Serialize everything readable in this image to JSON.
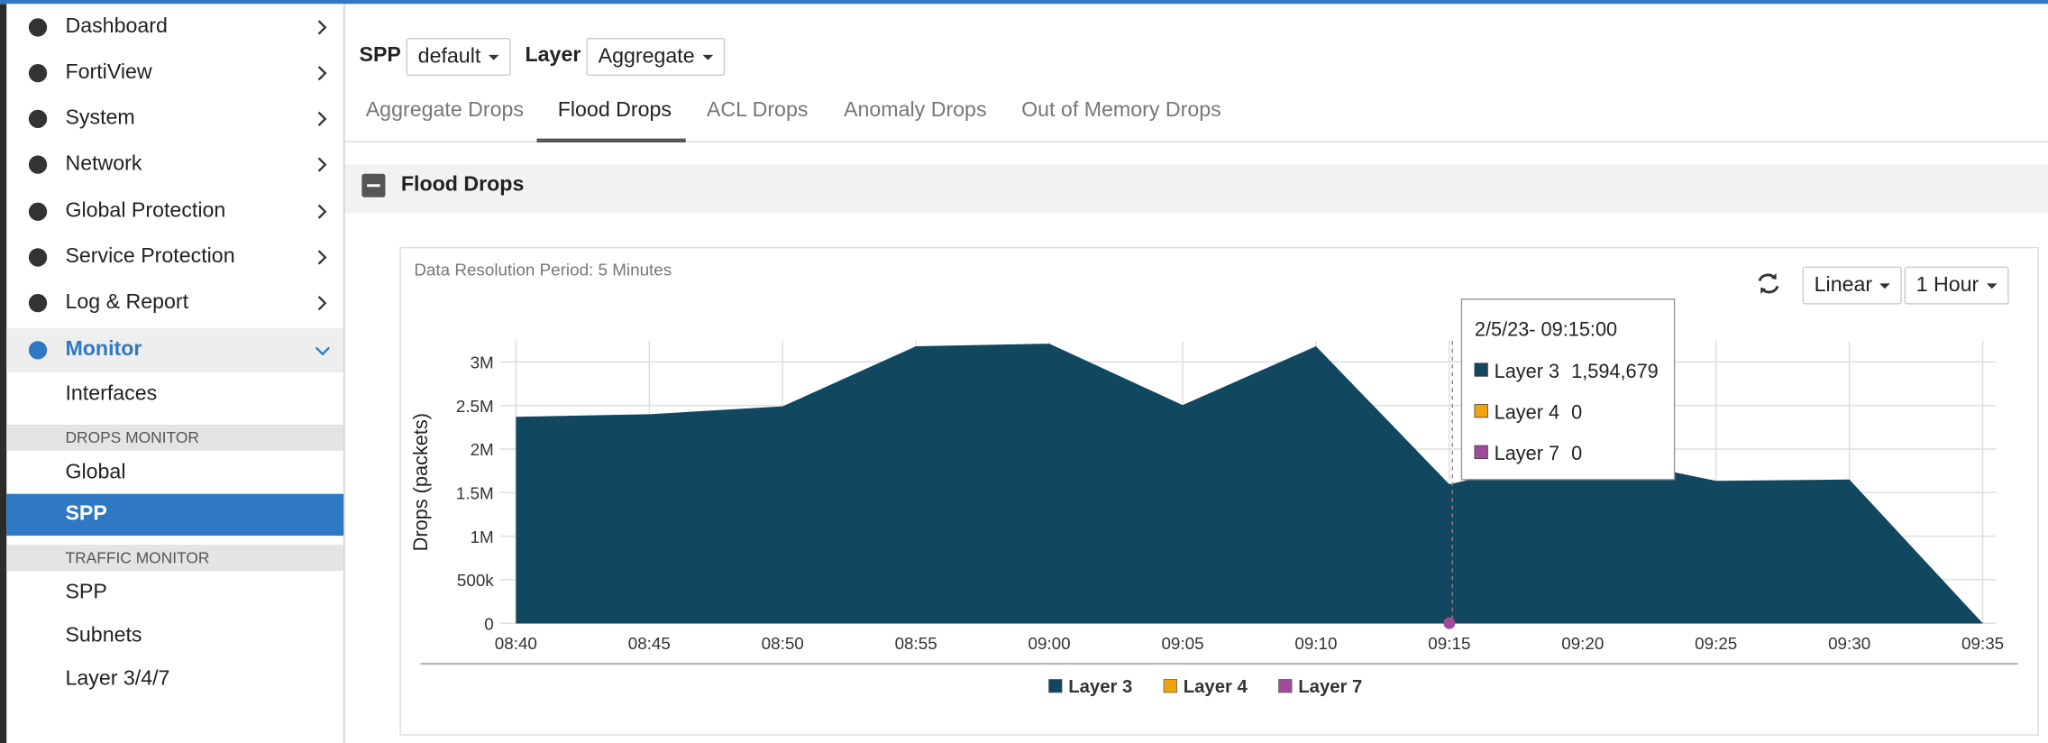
{
  "nav": {
    "menu": [
      "Dashboard",
      "FortiView",
      "System",
      "Network",
      "Global Protection",
      "Service Protection",
      "Log & Report",
      "Monitor"
    ],
    "monitor_items": [
      "Interfaces"
    ],
    "drops_monitor": {
      "header": "DROPS MONITOR",
      "items": [
        "Global",
        "SPP"
      ]
    },
    "traffic_monitor": {
      "header": "TRAFFIC MONITOR",
      "items": [
        "SPP",
        "Subnets",
        "Layer 3/4/7"
      ]
    }
  },
  "filters": {
    "spp_label": "SPP",
    "spp_value": "default",
    "layer_label": "Layer",
    "layer_value": "Aggregate"
  },
  "tabs": [
    "Aggregate Drops",
    "Flood Drops",
    "ACL Drops",
    "Anomaly Drops",
    "Out of Memory Drops"
  ],
  "panel": {
    "title": "Flood Drops"
  },
  "controls": {
    "scale": "Linear",
    "range": "1 Hour"
  },
  "chart_data": {
    "type": "area",
    "subtitle": "Data Resolution Period: 5 Minutes",
    "y_label": "Drops (packets)",
    "categories": [
      "08:40",
      "08:45",
      "08:50",
      "08:55",
      "09:00",
      "09:05",
      "09:10",
      "09:15",
      "09:20",
      "09:25",
      "09:30",
      "09:35"
    ],
    "series": [
      {
        "name": "Layer 3",
        "color": "#11475f",
        "values": [
          2370000,
          2400000,
          2490000,
          3180000,
          3210000,
          2505000,
          3180000,
          1594679,
          1950000,
          1635000,
          1650000,
          0
        ]
      },
      {
        "name": "Layer 4",
        "color": "#f0a30a",
        "values": [
          0,
          0,
          0,
          0,
          0,
          0,
          0,
          0,
          0,
          0,
          0,
          0
        ]
      },
      {
        "name": "Layer 7",
        "color": "#a04c9a",
        "values": [
          0,
          0,
          0,
          0,
          0,
          0,
          0,
          0,
          0,
          0,
          0,
          0
        ]
      }
    ],
    "ylim": [
      0,
      3240000
    ],
    "yticks": [
      0,
      {
        "value": 500000,
        "label": "500k"
      },
      {
        "value": 1000000,
        "label": "1M"
      },
      {
        "value": 1500000,
        "label": "1.5M"
      },
      {
        "value": 2000000,
        "label": "2M"
      },
      {
        "value": 2500000,
        "label": "2.5M"
      },
      {
        "value": 3000000,
        "label": "3M"
      }
    ],
    "grid": true,
    "tooltip": {
      "title": "2/5/23- 09:15:00",
      "value_labels": [
        "1,594,679",
        "0",
        "0"
      ]
    }
  }
}
